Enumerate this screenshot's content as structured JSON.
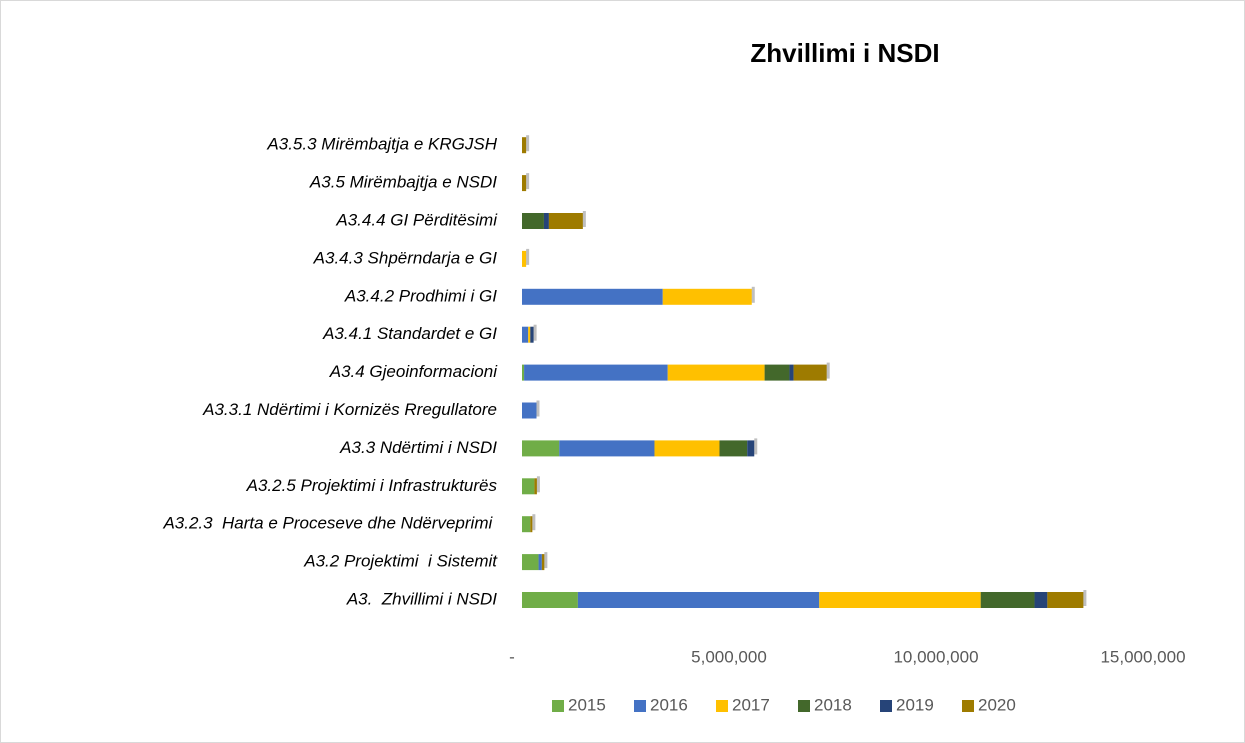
{
  "chart_data": {
    "type": "bar",
    "orientation": "horizontal",
    "stacked": true,
    "title": "Zhvillimi i NSDI",
    "categories": [
      "A3.  Zhvillimi i NSDI",
      "A3.2 Projektimi  i Sistemit",
      "A3.2.3  Harta e Proceseve dhe Ndërveprimi ",
      "A3.2.5 Projektimi i Infrastrukturës",
      "A3.3 Ndërtimi i NSDI",
      "A3.3.1 Ndërtimi i Kornizës Rregullatore",
      "A3.4 Gjeoinformacioni",
      "A3.4.1 Standardet e GI",
      "A3.4.2 Prodhimi i GI",
      "A3.4.3 Shpërndarja e GI",
      "A3.4.4 GI Përditësimi",
      "A3.5 Mirëmbajtja e NSDI",
      "A3.5.3 Mirëmbajtja e KRGJSH"
    ],
    "series": [
      {
        "name": "2015",
        "color": "#70ad47",
        "values": [
          1350000,
          400000,
          200000,
          300000,
          900000,
          0,
          50000,
          0,
          0,
          0,
          0,
          0,
          0
        ]
      },
      {
        "name": "2016",
        "color": "#4472c4",
        "values": [
          5830000,
          80000,
          0,
          0,
          2300000,
          350000,
          3470000,
          150000,
          3400000,
          0,
          0,
          0,
          0
        ]
      },
      {
        "name": "2017",
        "color": "#ffc000",
        "values": [
          3900000,
          0,
          0,
          0,
          1570000,
          0,
          2340000,
          50000,
          2150000,
          100000,
          0,
          0,
          0
        ]
      },
      {
        "name": "2018",
        "color": "#43682b",
        "values": [
          1300000,
          0,
          0,
          0,
          670000,
          0,
          600000,
          0,
          0,
          0,
          530000,
          0,
          0
        ]
      },
      {
        "name": "2019",
        "color": "#264478",
        "values": [
          310000,
          0,
          0,
          0,
          170000,
          0,
          100000,
          80000,
          0,
          0,
          120000,
          0,
          0
        ]
      },
      {
        "name": "2020",
        "color": "#9e7b00",
        "values": [
          870000,
          60000,
          50000,
          60000,
          0,
          0,
          800000,
          0,
          0,
          0,
          820000,
          100000,
          100000
        ]
      }
    ],
    "xlim": [
      0,
      15000000
    ],
    "xticks": [
      {
        "value": 0,
        "label": "-"
      },
      {
        "value": 5000000,
        "label": "5,000,000"
      },
      {
        "value": 10000000,
        "label": "10,000,000"
      },
      {
        "value": 15000000,
        "label": "15,000,000"
      }
    ],
    "legend": "bottom"
  }
}
